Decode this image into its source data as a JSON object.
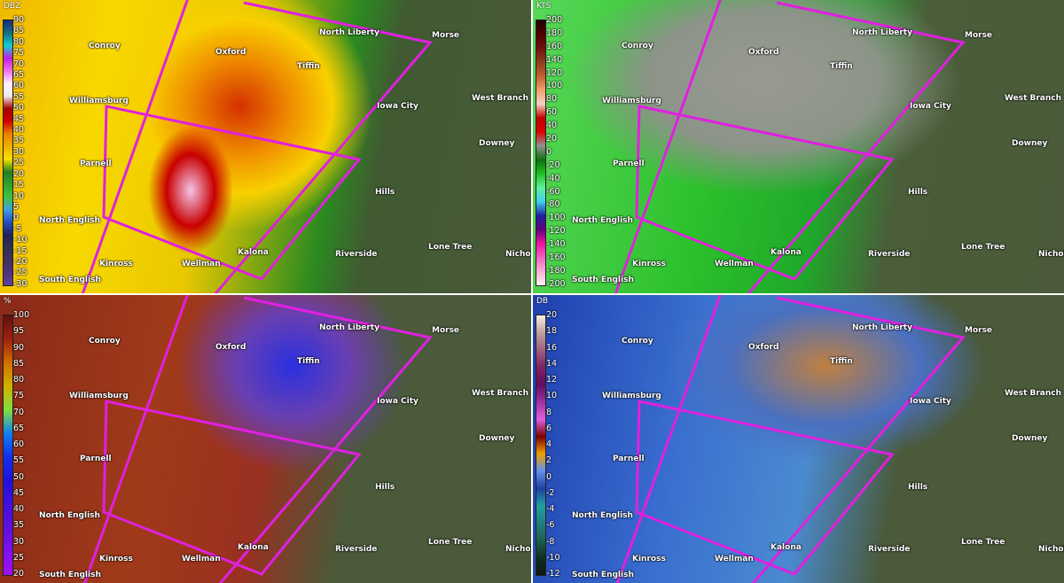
{
  "panels": [
    {
      "id": "reflectivity",
      "unit": "DBZ",
      "scale": [
        "90",
        "85",
        "80",
        "75",
        "70",
        "65",
        "60",
        "55",
        "50",
        "45",
        "40",
        "35",
        "30",
        "25",
        "20",
        "15",
        "10",
        "5",
        "0",
        "-5",
        "-10",
        "-15",
        "-20",
        "-25",
        "-30"
      ],
      "gradient": "#1a2a80,#107080,#10d0d0,#c020e0,#f070f0,#fff0ff,#f0e8f0,#a00000,#d00000,#f08000,#f0b000,#f8e000,#208020,#30a030,#40c040,#40a0e0,#2050c0,#202060,#303050,#403060,#503080,#6040a0"
    },
    {
      "id": "velocity",
      "unit": "KTS",
      "scale": [
        "200",
        "180",
        "160",
        "140",
        "120",
        "100",
        "80",
        "60",
        "40",
        "20",
        "0",
        "-20",
        "-40",
        "-60",
        "-80",
        "-100",
        "-120",
        "-140",
        "-160",
        "-180",
        "-200"
      ],
      "gradient": "#200000,#500000,#701010,#904020,#c06030,#f0a070,#f8d0c0,#c00000,#e00000,#909090,#107010,#20c020,#60f0a0,#40d0f0,#2020a0,#600080,#f010a0,#f060c0,#f8b0d8,#fff0f0"
    },
    {
      "id": "correlation-coefficient",
      "unit": "%",
      "scale": [
        "100",
        "95",
        "90",
        "85",
        "80",
        "75",
        "70",
        "65",
        "60",
        "55",
        "50",
        "45",
        "40",
        "35",
        "30",
        "25",
        "20"
      ],
      "gradient": "#601010,#a02010,#d07000,#d0b000,#80e040,#1080f0,#1030f0,#2010e0,#4010e0,#6010e0,#8010f0,#a010f0"
    },
    {
      "id": "differential-reflectivity",
      "unit": "DB",
      "scale": [
        "20",
        "18",
        "16",
        "14",
        "12",
        "10",
        "8",
        "6",
        "4",
        "2",
        "0",
        "-2",
        "-4",
        "-6",
        "-8",
        "-10",
        "-12"
      ],
      "gradient": "#f8f0e0,#c0a0a0,#a06080,#802060,#601060,#a030a0,#e060e0,#800000,#f0a000,#6090f0,#2040a0,#20a0a0,#208080,#206050,#103020,#101810"
    }
  ],
  "towns": [
    {
      "name": "Conroy"
    },
    {
      "name": "Oxford"
    },
    {
      "name": "North Liberty"
    },
    {
      "name": "Morse"
    },
    {
      "name": "Tiffin"
    },
    {
      "name": "West Branch"
    },
    {
      "name": "Williamsburg"
    },
    {
      "name": "Iowa City"
    },
    {
      "name": "Downey"
    },
    {
      "name": "Parnell"
    },
    {
      "name": "Hills"
    },
    {
      "name": "North English"
    },
    {
      "name": "Lone Tree"
    },
    {
      "name": "Kalona"
    },
    {
      "name": "Riverside"
    },
    {
      "name": "Nichols"
    },
    {
      "name": "Kinross"
    },
    {
      "name": "Wellman"
    },
    {
      "name": "South English"
    }
  ],
  "colors": {
    "warning_polygon": "#e020e0",
    "divider": "#ffffff"
  }
}
